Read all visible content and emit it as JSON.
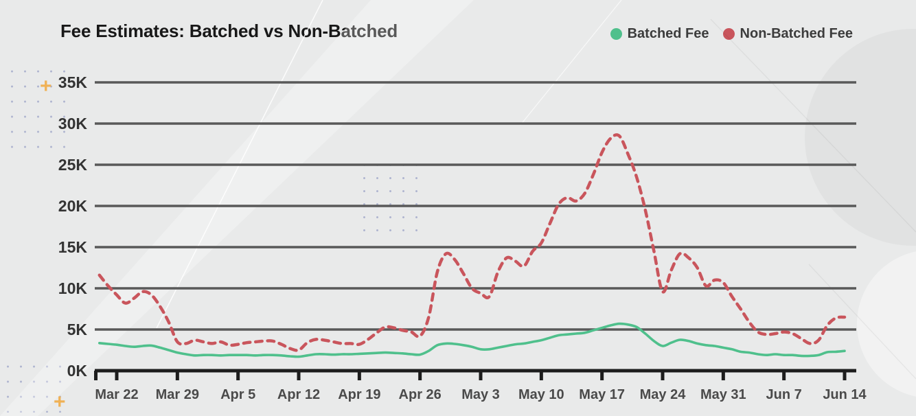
{
  "title": "Fee Estimates: Batched vs Non-Batched",
  "colors": {
    "background": "#e9eaea",
    "gridline": "#595959",
    "axis_line": "#1d1d1d",
    "batched_green": "#4fc08c",
    "non_batched_red": "#c9555c",
    "decor_plus_yellow": "#f0b155"
  },
  "chart_data": {
    "type": "line",
    "title": "Fee Estimates: Batched vs Non-Batched",
    "xlabel": "",
    "ylabel": "",
    "y_unit": "K",
    "ylim": [
      0,
      35
    ],
    "grid": "horizontal-only",
    "legend_position": "top-right",
    "y_tick_labels": [
      "0K",
      "5K",
      "10K",
      "15K",
      "20K",
      "25K",
      "30K",
      "35K"
    ],
    "x_tick_labels": [
      "Mar 22",
      "Mar 29",
      "Apr 5",
      "Apr 12",
      "Apr 19",
      "Apr 26",
      "May 3",
      "May 10",
      "May 17",
      "May 24",
      "May 31",
      "Jun 7",
      "Jun 14"
    ],
    "x_tick_days": [
      0,
      7,
      14,
      21,
      28,
      35,
      42,
      49,
      56,
      63,
      70,
      77,
      84
    ],
    "x_unit": "day",
    "x_start_day": -2,
    "series": [
      {
        "name": "Batched Fee",
        "color": "#4fc08c",
        "style": "solid",
        "values": [
          3.35,
          3.25,
          3.15,
          3.0,
          2.9,
          3.0,
          3.05,
          2.8,
          2.5,
          2.2,
          2.0,
          1.85,
          1.9,
          1.9,
          1.85,
          1.9,
          1.9,
          1.9,
          1.85,
          1.9,
          1.9,
          1.85,
          1.75,
          1.7,
          1.85,
          2.0,
          2.0,
          1.95,
          2.0,
          2.0,
          2.05,
          2.1,
          2.15,
          2.2,
          2.15,
          2.1,
          2.0,
          1.95,
          2.4,
          3.1,
          3.3,
          3.25,
          3.1,
          2.9,
          2.6,
          2.6,
          2.8,
          3.0,
          3.2,
          3.3,
          3.5,
          3.7,
          4.0,
          4.3,
          4.4,
          4.5,
          4.6,
          4.9,
          5.2,
          5.5,
          5.7,
          5.6,
          5.3,
          4.5,
          3.6,
          3.0,
          3.4,
          3.75,
          3.6,
          3.3,
          3.1,
          3.0,
          2.8,
          2.6,
          2.3,
          2.2,
          2.0,
          1.9,
          2.0,
          1.9,
          1.9,
          1.8,
          1.8,
          1.9,
          2.25,
          2.3,
          2.4
        ]
      },
      {
        "name": "Non-Batched Fee",
        "color": "#c9555c",
        "style": "dashed",
        "values": [
          11.6,
          10.3,
          9.2,
          8.2,
          8.8,
          9.6,
          9.2,
          7.8,
          5.9,
          3.5,
          3.3,
          3.7,
          3.5,
          3.3,
          3.5,
          3.1,
          3.2,
          3.4,
          3.5,
          3.6,
          3.6,
          3.2,
          2.7,
          2.5,
          3.4,
          3.8,
          3.7,
          3.5,
          3.3,
          3.3,
          3.2,
          3.8,
          4.6,
          5.3,
          5.2,
          4.9,
          4.7,
          4.2,
          6.5,
          12.0,
          14.2,
          13.5,
          11.8,
          10.0,
          9.4,
          9.0,
          12.0,
          13.7,
          13.3,
          12.7,
          14.5,
          15.5,
          17.9,
          20.2,
          21.0,
          20.6,
          21.5,
          23.8,
          26.5,
          28.2,
          28.5,
          26.3,
          23.5,
          19.5,
          14.5,
          9.6,
          12.2,
          14.2,
          13.7,
          12.5,
          10.3,
          11.0,
          10.7,
          9.0,
          7.5,
          5.9,
          4.7,
          4.4,
          4.5,
          4.7,
          4.5,
          3.9,
          3.3,
          3.7,
          5.5,
          6.4,
          6.5
        ]
      }
    ]
  }
}
